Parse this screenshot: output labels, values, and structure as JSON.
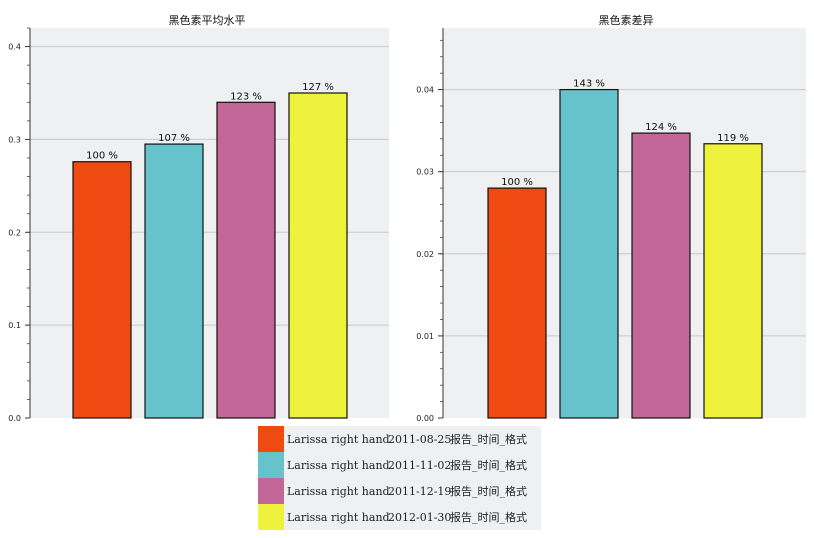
{
  "chart_data": [
    {
      "type": "bar",
      "title": "黑色素平均水平",
      "ylim": [
        0,
        0.42
      ],
      "yticks": [
        "0.0",
        "0.1",
        "0.2",
        "0.3",
        "0.4"
      ],
      "grid": true,
      "categories": [
        "Larissa right hand 2011-08-25 报告_时间_格式",
        "Larissa right hand 2011-11-02 报告_时间_格式",
        "Larissa right hand 2011-12-19 报告_时间_格式",
        "Larissa right hand 2012-01-30 报告_时间_格式"
      ],
      "values": [
        0.276,
        0.295,
        0.34,
        0.35
      ],
      "value_labels": [
        "100 %",
        "107 %",
        "123 %",
        "127 %"
      ]
    },
    {
      "type": "bar",
      "title": "黑色素差异",
      "ylim": [
        0,
        0.0475
      ],
      "yticks": [
        "0.00",
        "0.01",
        "0.02",
        "0.03",
        "0.04"
      ],
      "grid": true,
      "categories": [
        "Larissa right hand 2011-08-25 报告_时间_格式",
        "Larissa right hand 2011-11-02 报告_时间_格式",
        "Larissa right hand 2011-12-19 报告_时间_格式",
        "Larissa right hand 2012-01-30 报告_时间_格式"
      ],
      "values": [
        0.028,
        0.04,
        0.0347,
        0.0334
      ],
      "value_labels": [
        "100 %",
        "143 %",
        "124 %",
        "119 %"
      ]
    }
  ],
  "legend": {
    "placement": "bottom-center",
    "entries": [
      {
        "name": "Larissa right hand",
        "date": "2011-08-25",
        "suffix": "报告_时间_格式",
        "color": "#ee4a12"
      },
      {
        "name": "Larissa right hand",
        "date": "2011-11-02",
        "suffix": "报告_时间_格式",
        "color": "#66c3cb"
      },
      {
        "name": "Larissa right hand",
        "date": "2011-12-19",
        "suffix": "报告_时间_格式",
        "color": "#c26798"
      },
      {
        "name": "Larissa right hand",
        "date": "2012-01-30",
        "suffix": "报告_时间_格式",
        "color": "#eff23c"
      }
    ]
  }
}
